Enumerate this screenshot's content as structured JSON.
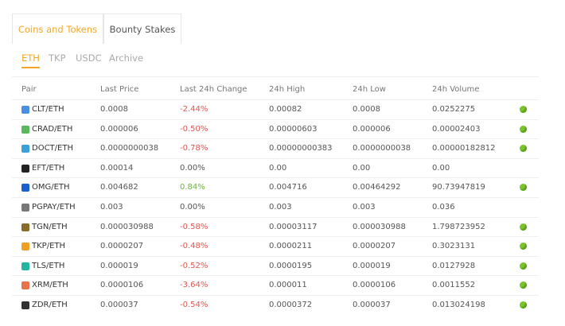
{
  "tabs": [
    "Coins and Tokens",
    "Bounty Stakes"
  ],
  "active_tab": 0,
  "subtabs": [
    "ETH",
    "TKP",
    "USDC",
    "Archive"
  ],
  "active_subtab": 0,
  "table": {
    "header": [
      "Pair",
      "Last Price",
      "Last 24h Change",
      "24h High",
      "24h Low",
      "24h Volume"
    ],
    "rows": [
      [
        "CLT/ETH",
        "0.0008",
        "-2.44%",
        "0.00082",
        "0.0008",
        "0.0252275"
      ],
      [
        "CRAD/ETH",
        "0.000006",
        "-0.50%",
        "0.00000603",
        "0.000006",
        "0.00002403"
      ],
      [
        "DOCT/ETH",
        "0.0000000038",
        "-0.78%",
        "0.00000000383",
        "0.0000000038",
        "0.00000182812"
      ],
      [
        "EFT/ETH",
        "0.00014",
        "0.00%",
        "0.00",
        "0.00",
        "0.00"
      ],
      [
        "OMG/ETH",
        "0.004682",
        "0.84%",
        "0.004716",
        "0.00464292",
        "90.73947819"
      ],
      [
        "PGPAY/ETH",
        "0.003",
        "0.00%",
        "0.003",
        "0.003",
        "0.036"
      ],
      [
        "TGN/ETH",
        "0.000030988",
        "-0.58%",
        "0.00003117",
        "0.000030988",
        "1.798723952"
      ],
      [
        "TKP/ETH",
        "0.0000207",
        "-0.48%",
        "0.0000211",
        "0.0000207",
        "0.3023131"
      ],
      [
        "TLS/ETH",
        "0.000019",
        "-0.52%",
        "0.0000195",
        "0.000019",
        "0.0127928"
      ],
      [
        "XRM/ETH",
        "0.0000106",
        "-3.64%",
        "0.000011",
        "0.0000106",
        "0.0011552"
      ],
      [
        "ZDR/ETH",
        "0.000037",
        "-0.54%",
        "0.0000372",
        "0.000037",
        "0.013024198"
      ]
    ],
    "status_icon": [
      true,
      true,
      true,
      false,
      true,
      false,
      true,
      true,
      true,
      true,
      true
    ]
  }
}
